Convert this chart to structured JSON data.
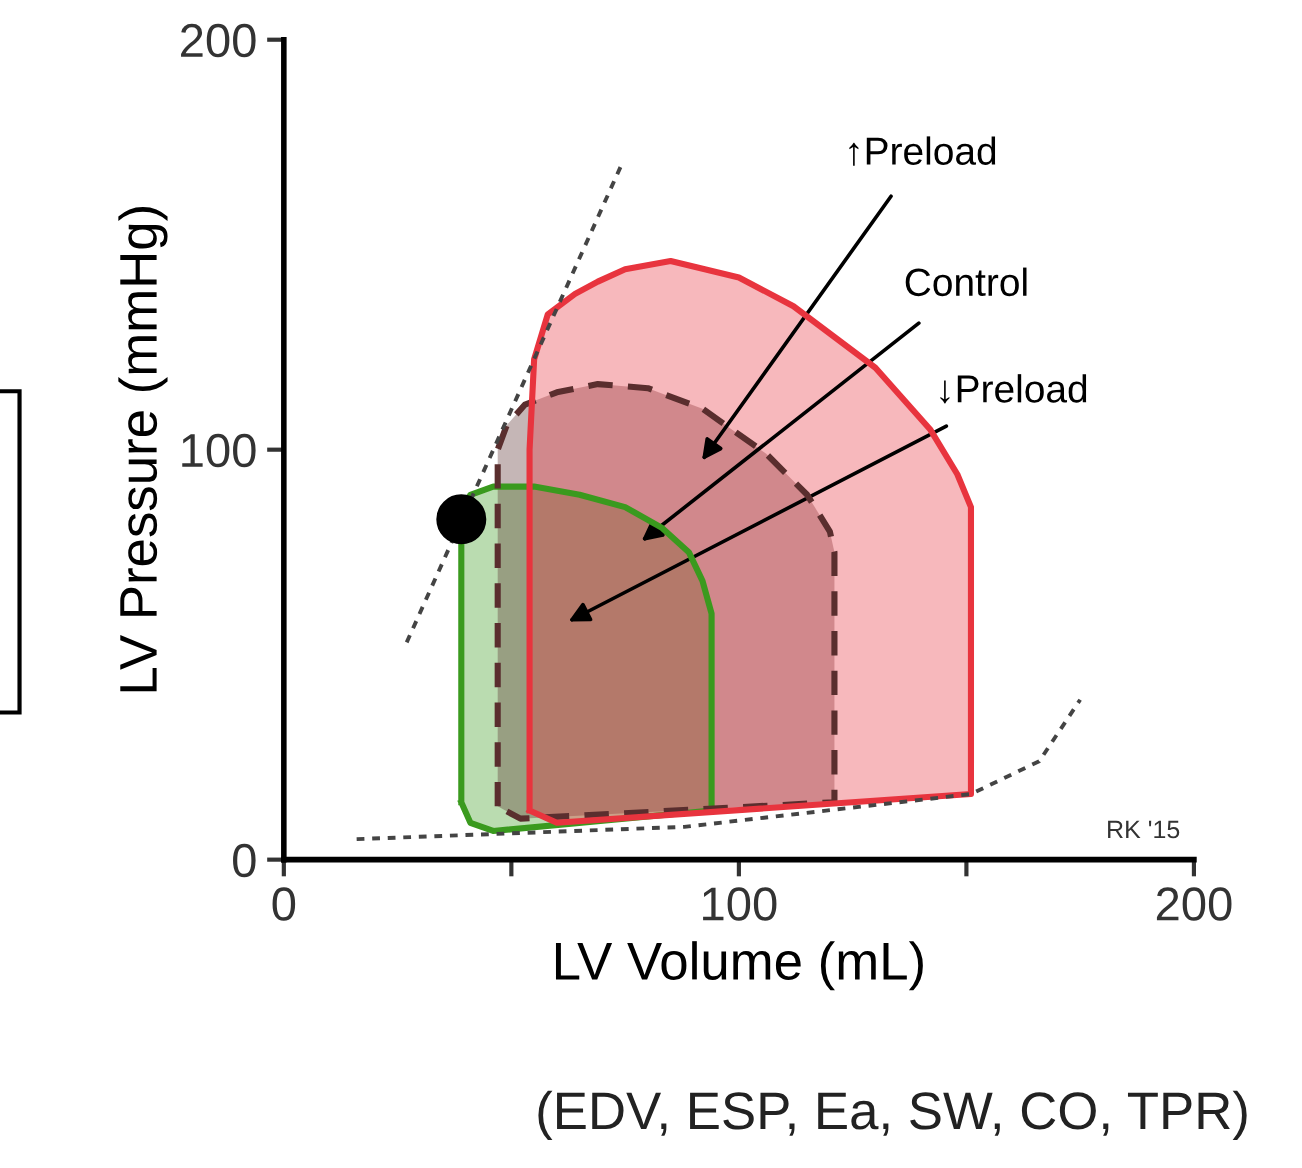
{
  "chart_data": {
    "type": "area",
    "xlabel": "LV Volume (mL)",
    "ylabel": "LV Pressure (mmHg)",
    "xlim": [
      0,
      200
    ],
    "ylim": [
      0,
      200
    ],
    "xticks": [
      0,
      {
        "value": 50,
        "label": null
      },
      100,
      {
        "value": 150,
        "label": null
      },
      200
    ],
    "yticks": [
      0,
      100,
      200
    ],
    "grid": false,
    "series": [
      {
        "color": "#3a9a1e",
        "line_style": "solid",
        "x": [
          39,
          39,
          41,
          46,
          55,
          65,
          75,
          83,
          89,
          92,
          94,
          94,
          46,
          41,
          39
        ],
        "values": [
          14,
          85,
          89,
          91,
          91,
          89,
          86,
          81,
          75,
          68,
          60,
          12,
          7,
          9,
          14
        ]
      },
      {
        "color": "#5a2e2e",
        "line_style": "dashed",
        "x": [
          47,
          47,
          49,
          53,
          60,
          69,
          80,
          92,
          106,
          115,
          120,
          121,
          121,
          52,
          47
        ],
        "values": [
          13,
          100,
          106,
          111,
          114,
          116,
          115,
          110,
          99,
          89,
          80,
          75,
          14,
          10,
          13
        ]
      },
      {
        "color": "#e8343e",
        "line_style": "solid",
        "x": [
          54,
          54,
          55,
          58,
          64,
          69,
          75,
          85,
          100,
          112,
          130,
          142,
          148,
          151,
          151,
          60,
          54
        ],
        "values": [
          12,
          100,
          122,
          133,
          138,
          141,
          144,
          146,
          142,
          135,
          120,
          105,
          94,
          86,
          16,
          9,
          12
        ]
      },
      {
        "type": "line",
        "color": "#444444",
        "line_style": "dotted",
        "x": [
          27,
          74
        ],
        "values": [
          53,
          169
        ]
      },
      {
        "type": "line",
        "color": "#444444",
        "line_style": "dotted",
        "x": [
          16,
          88,
          151,
          166,
          175
        ],
        "values": [
          5,
          8,
          16,
          24,
          39
        ]
      },
      {
        "type": "scatter",
        "color": "#000000",
        "marker": "circle",
        "x": [
          39
        ],
        "values": [
          83
        ]
      }
    ],
    "annotations": [
      "↑Preload",
      "Control",
      "↓Preload",
      "RK '15",
      "(EDV, ESP, Ea, SW, CO, TPR)"
    ]
  }
}
